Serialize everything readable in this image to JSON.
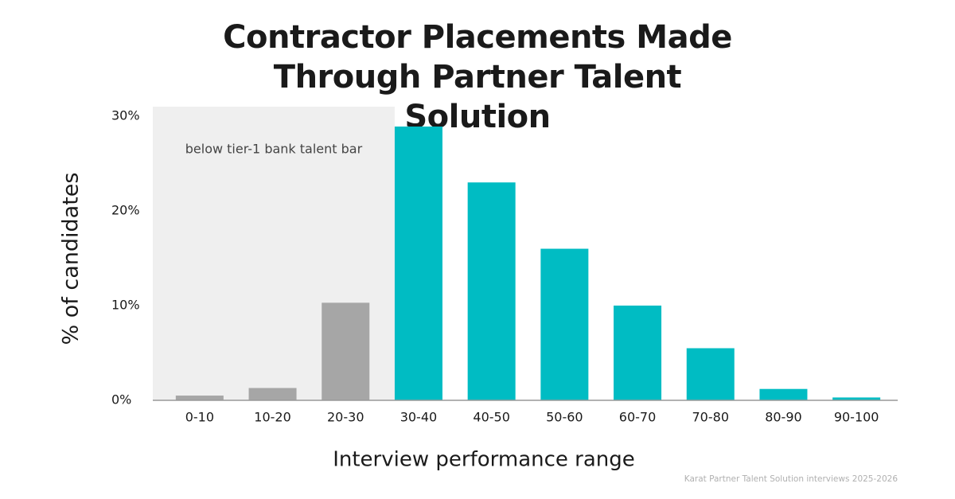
{
  "chart_data": {
    "type": "bar",
    "title": "Contractor Placements Made Through Partner Talent Solution",
    "x_label": "Interview performance range",
    "y_label": "% of candidates",
    "source": "Karat Partner Talent Solution interviews 2025-2026",
    "categories": [
      "0-10",
      "10-20",
      "20-30",
      "30-40",
      "40-50",
      "50-60",
      "60-70",
      "70-80",
      "80-90",
      "90-100"
    ],
    "values": [
      0.5,
      1.3,
      10.3,
      28.9,
      23.0,
      16.0,
      10.0,
      5.5,
      1.2,
      0.3
    ],
    "colors": [
      "#a6a6a6",
      "#a6a6a6",
      "#a6a6a6",
      "#00bcc3",
      "#00bcc3",
      "#00bcc3",
      "#00bcc3",
      "#00bcc3",
      "#00bcc3",
      "#00bcc3"
    ],
    "ylim": [
      0,
      31
    ],
    "yticks": [
      {
        "value": 0,
        "label": "0%"
      },
      {
        "value": 10,
        "label": "10%"
      },
      {
        "value": 20,
        "label": "20%"
      },
      {
        "value": 30,
        "label": "30%"
      }
    ],
    "grid": false,
    "shaded_region": {
      "text": "below tier-1 bank talent bar",
      "from": "0-10",
      "to": "20-30",
      "color": "#efefef"
    }
  }
}
